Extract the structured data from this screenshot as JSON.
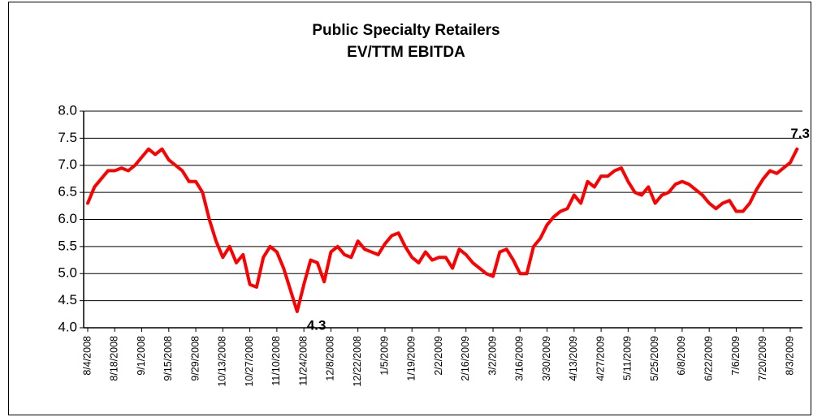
{
  "chart_data": {
    "type": "line",
    "title": "Public Specialty Retailers",
    "subtitle": "EV/TTM EBITDA",
    "categories": [
      "8/4/2008",
      null,
      null,
      null,
      "8/18/2008",
      null,
      null,
      null,
      "9/1/2008",
      null,
      null,
      null,
      "9/15/2008",
      null,
      null,
      null,
      "9/29/2008",
      null,
      null,
      null,
      "10/13/2008",
      null,
      null,
      null,
      "10/27/2008",
      null,
      null,
      null,
      "11/10/2008",
      null,
      null,
      null,
      "11/24/2008",
      null,
      null,
      null,
      "12/8/2008",
      null,
      null,
      null,
      "12/22/2008",
      null,
      null,
      null,
      "1/5/2009",
      null,
      null,
      null,
      "1/19/2009",
      null,
      null,
      null,
      "2/2/2009",
      null,
      null,
      null,
      "2/16/2009",
      null,
      null,
      null,
      "3/2/2009",
      null,
      null,
      null,
      "3/16/2009",
      null,
      null,
      null,
      "3/30/2009",
      null,
      null,
      null,
      "4/13/2009",
      null,
      null,
      null,
      "4/27/2009",
      null,
      null,
      null,
      "5/11/2009",
      null,
      null,
      null,
      "5/25/2009",
      null,
      null,
      null,
      "6/8/2009",
      null,
      null,
      null,
      "6/22/2009",
      null,
      null,
      null,
      "7/6/2009",
      null,
      null,
      null,
      "7/20/2009",
      null,
      null,
      null,
      "8/3/2009",
      null
    ],
    "values": [
      6.3,
      6.6,
      6.75,
      6.9,
      6.9,
      6.95,
      6.9,
      7.0,
      7.15,
      7.3,
      7.2,
      7.3,
      7.1,
      7.0,
      6.9,
      6.7,
      6.7,
      6.5,
      6.0,
      5.6,
      5.3,
      5.5,
      5.2,
      5.35,
      4.8,
      4.75,
      5.3,
      5.5,
      5.4,
      5.1,
      4.7,
      4.3,
      4.8,
      5.25,
      5.2,
      4.85,
      5.4,
      5.5,
      5.35,
      5.3,
      5.6,
      5.45,
      5.4,
      5.35,
      5.55,
      5.7,
      5.75,
      5.5,
      5.3,
      5.2,
      5.4,
      5.25,
      5.3,
      5.3,
      5.1,
      5.45,
      5.35,
      5.2,
      5.1,
      5.0,
      4.95,
      5.4,
      5.45,
      5.25,
      5.0,
      5.0,
      5.5,
      5.65,
      5.9,
      6.05,
      6.15,
      6.2,
      6.45,
      6.3,
      6.7,
      6.6,
      6.8,
      6.8,
      6.9,
      6.95,
      6.7,
      6.5,
      6.45,
      6.6,
      6.3,
      6.45,
      6.5,
      6.65,
      6.7,
      6.65,
      6.55,
      6.45,
      6.3,
      6.2,
      6.3,
      6.35,
      6.15,
      6.15,
      6.3,
      6.55,
      6.75,
      6.9,
      6.85,
      6.95,
      7.05,
      7.3
    ],
    "labeled_points": [
      31,
      105
    ],
    "color": "#ff0000",
    "ylim": [
      4.0,
      8.0
    ],
    "yticks": [
      {
        "value": 4.0,
        "label": "4.0"
      },
      {
        "value": 4.5,
        "label": "4.5"
      },
      {
        "value": 5.0,
        "label": "5.0"
      },
      {
        "value": 5.5,
        "label": "5.5"
      },
      {
        "value": 6.0,
        "label": "6.0"
      },
      {
        "value": 6.5,
        "label": "6.5"
      },
      {
        "value": 7.0,
        "label": "7.0"
      },
      {
        "value": 7.5,
        "label": "7.5"
      },
      {
        "value": 8.0,
        "label": "8.0"
      }
    ],
    "grid": true
  }
}
